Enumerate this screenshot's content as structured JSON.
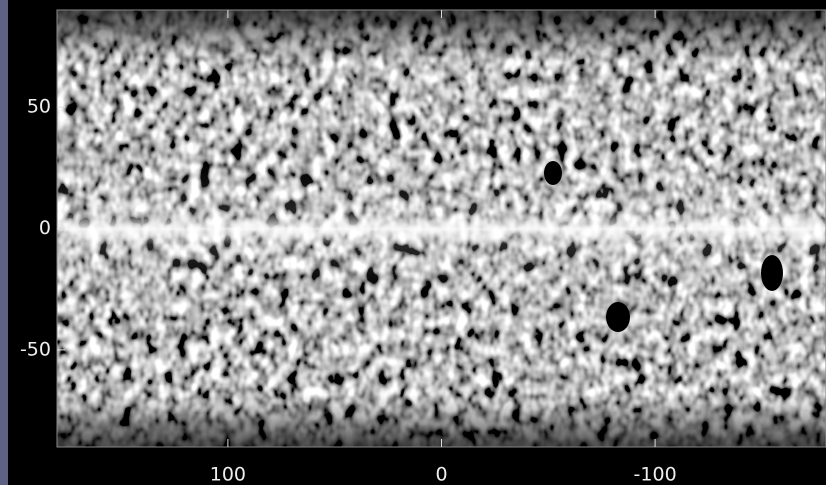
{
  "chart_data": {
    "type": "image",
    "xlim": [
      180,
      -180
    ],
    "xticks": [
      100,
      0,
      -100
    ],
    "ylim": [
      -90,
      90
    ],
    "yticks": [
      50,
      0,
      -50
    ]
  }
}
